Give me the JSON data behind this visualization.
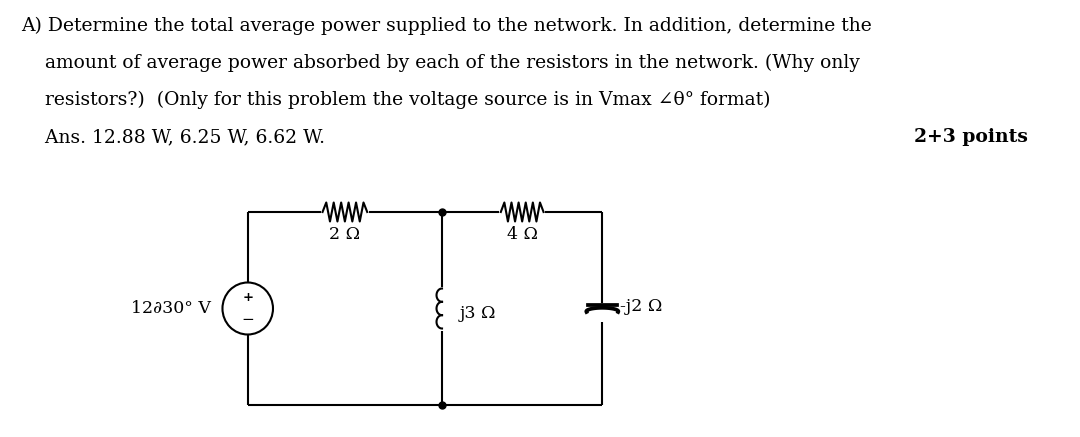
{
  "background_color": "#ffffff",
  "text_color": "#000000",
  "line1": "A) Determine the total average power supplied to the network. In addition, determine the",
  "line2": "    amount of average power absorbed by each of the resistors in the network. (Why only",
  "line3": "    resistors?)  (Only for this problem the voltage source is in Vmax ∠θ° format)",
  "line4": "    Ans. 12.88 W, 6.25 W, 6.62 W.",
  "points_text": "2+3 points",
  "label_2ohm": "2 Ω",
  "label_4ohm": "4 Ω",
  "label_j3ohm": "j3 Ω",
  "label_neg_j2ohm": "-j2 Ω",
  "label_source": "12∂30° V",
  "fig_width": 10.8,
  "fig_height": 4.37,
  "dpi": 100,
  "text_fs": 13.5,
  "label_fs": 12.5
}
